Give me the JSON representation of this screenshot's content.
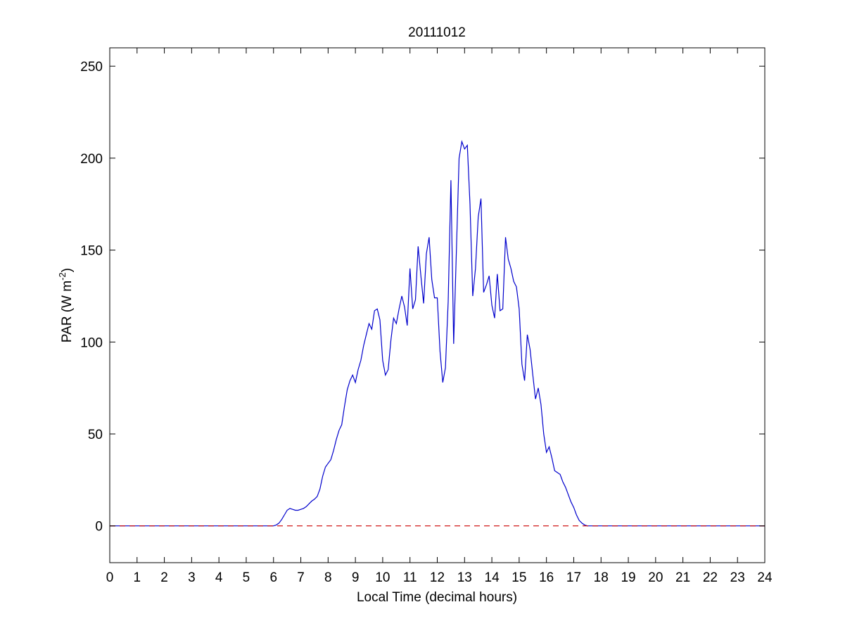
{
  "chart_data": {
    "type": "line",
    "title": "20111012",
    "xlabel": "Local Time (decimal hours)",
    "ylabel_main": "PAR (W m",
    "ylabel_sup": "-2",
    "ylabel_close": ")",
    "xlim": [
      0,
      24
    ],
    "ylim": [
      -20,
      260
    ],
    "xticks": [
      0,
      1,
      2,
      3,
      4,
      5,
      6,
      7,
      8,
      9,
      10,
      11,
      12,
      13,
      14,
      15,
      16,
      17,
      18,
      19,
      20,
      21,
      22,
      23,
      24
    ],
    "yticks": [
      0,
      50,
      100,
      150,
      200,
      250
    ],
    "grid": false,
    "legend": "none",
    "series": [
      {
        "color": "#0000cc",
        "style": "solid",
        "x": [
          0,
          6.0,
          6.1,
          6.2,
          6.3,
          6.4,
          6.5,
          6.6,
          6.7,
          6.8,
          6.9,
          7.0,
          7.1,
          7.2,
          7.3,
          7.4,
          7.5,
          7.6,
          7.7,
          7.8,
          7.9,
          8.0,
          8.1,
          8.2,
          8.3,
          8.4,
          8.5,
          8.6,
          8.7,
          8.8,
          8.9,
          9.0,
          9.1,
          9.2,
          9.3,
          9.4,
          9.5,
          9.6,
          9.7,
          9.8,
          9.9,
          10.0,
          10.1,
          10.2,
          10.3,
          10.4,
          10.5,
          10.6,
          10.7,
          10.8,
          10.9,
          11.0,
          11.1,
          11.2,
          11.3,
          11.4,
          11.5,
          11.6,
          11.7,
          11.8,
          11.9,
          12.0,
          12.1,
          12.2,
          12.3,
          12.4,
          12.5,
          12.6,
          12.7,
          12.8,
          12.9,
          13.0,
          13.1,
          13.2,
          13.3,
          13.4,
          13.5,
          13.6,
          13.7,
          13.8,
          13.9,
          14.0,
          14.1,
          14.2,
          14.3,
          14.4,
          14.5,
          14.6,
          14.7,
          14.8,
          14.9,
          15.0,
          15.1,
          15.2,
          15.3,
          15.4,
          15.5,
          15.6,
          15.7,
          15.8,
          15.9,
          16.0,
          16.1,
          16.2,
          16.3,
          16.4,
          16.5,
          16.6,
          16.7,
          16.8,
          16.9,
          17.0,
          17.1,
          17.2,
          17.3,
          17.4,
          17.5,
          17.6,
          17.7,
          17.8,
          18.0,
          24
        ],
        "y": [
          0,
          0,
          0.5,
          1.5,
          3.5,
          6,
          8.5,
          9.5,
          9,
          8.5,
          8.5,
          9,
          9.5,
          10.5,
          12,
          13.5,
          14.5,
          16,
          20,
          27,
          32,
          34,
          36,
          41,
          47,
          52,
          55,
          65,
          74,
          79,
          82,
          78,
          85,
          90,
          98,
          104,
          110,
          107,
          117,
          118,
          112,
          90,
          82,
          85,
          101,
          113,
          110,
          118,
          125,
          119,
          109,
          140,
          118,
          123,
          152,
          136,
          121,
          148,
          157,
          134,
          124,
          124,
          95,
          78,
          86,
          122,
          188,
          99,
          150,
          200,
          209,
          205,
          207,
          175,
          125,
          140,
          168,
          178,
          127,
          131,
          136,
          120,
          113,
          137,
          117,
          118,
          157,
          145,
          140,
          133,
          130,
          118,
          88,
          79,
          104,
          96,
          82,
          69,
          75,
          66,
          50,
          40,
          43,
          37,
          30,
          29,
          28,
          24,
          21,
          17,
          13,
          10,
          6,
          3,
          1.5,
          0.5,
          0,
          0,
          0,
          0,
          0,
          0
        ]
      },
      {
        "color": "#cc0000",
        "style": "dashed",
        "x": [
          0,
          24
        ],
        "y": [
          0,
          0
        ]
      }
    ]
  }
}
